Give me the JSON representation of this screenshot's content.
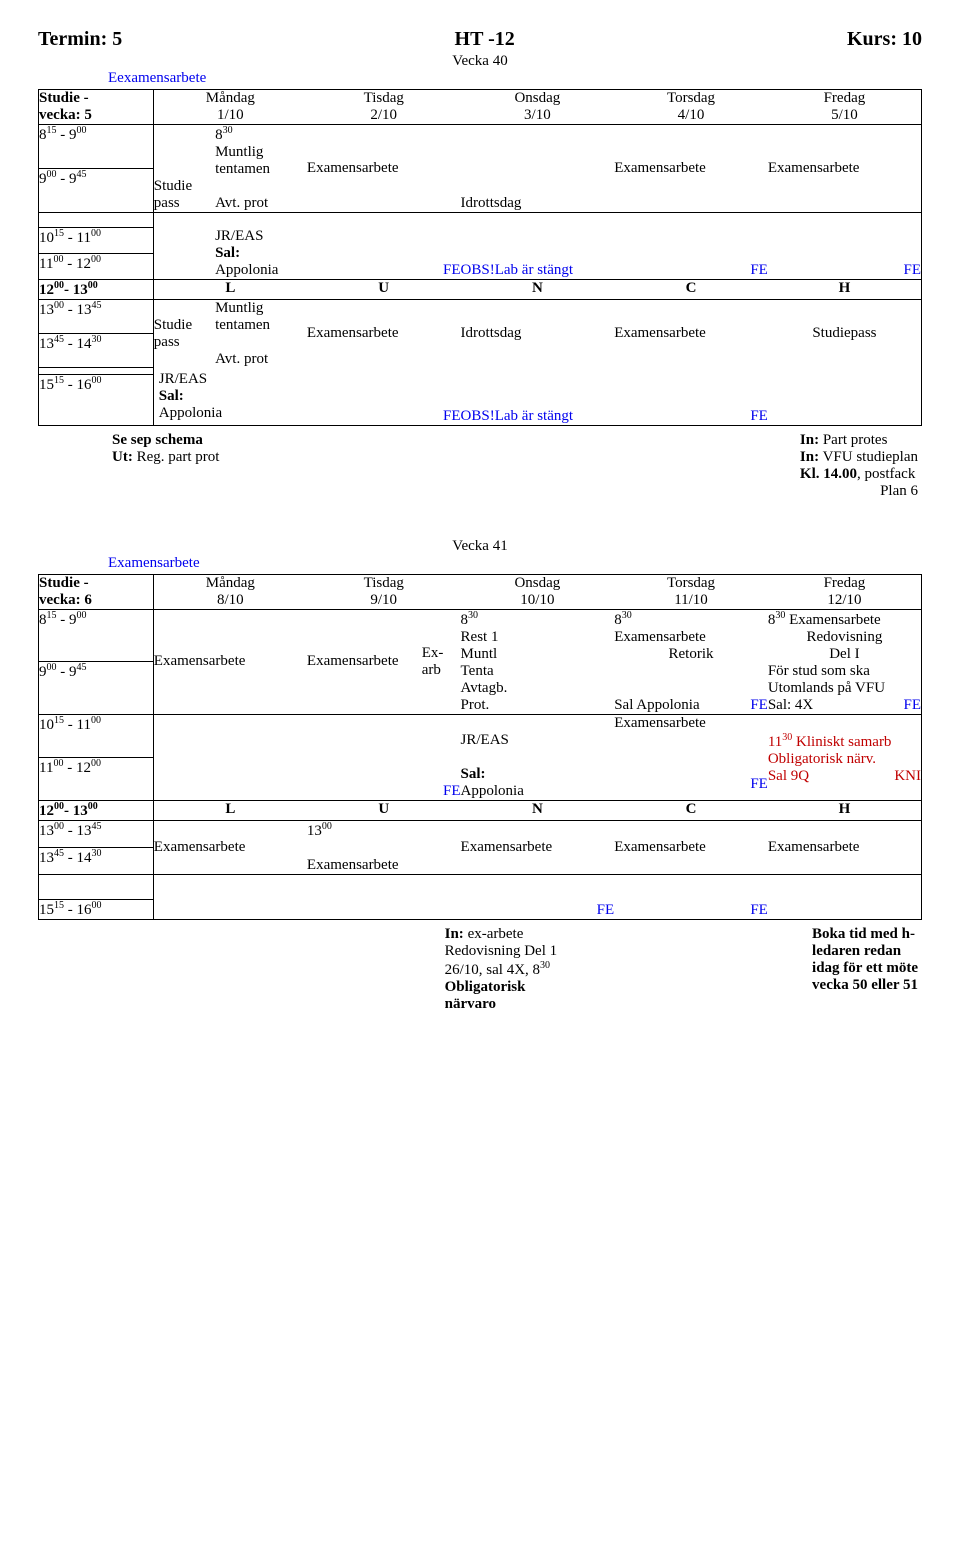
{
  "header": {
    "left": "Termin: 5",
    "center": "HT -12",
    "right": "Kurs: 10"
  },
  "w40": {
    "vecka": "Vecka 40",
    "link": "Eexamensarbete",
    "col0a": "Studie -",
    "col0b": "vecka: 5",
    "days": [
      "Måndag",
      "Tisdag",
      "Onsdag",
      "Torsdag",
      "Fredag"
    ],
    "dates": [
      "1/10",
      "2/10",
      "3/10",
      "4/10",
      "5/10"
    ],
    "t1a": "8",
    "t1as": "15",
    "t1b": " - 9",
    "t1bs": "00",
    "t2a": "9",
    "t2as": "00",
    "t2b": " - 9",
    "t2bs": "45",
    "t3a": "10",
    "t3as": "15",
    "t3b": " - 11",
    "t3bs": "00",
    "t4a": "11",
    "t4as": "00",
    "t4b": " - 12",
    "t4bs": "00",
    "tLa": "12",
    "tLas": "00",
    "tLb": "- 13",
    "tLbs": "00",
    "t5a": "13",
    "t5as": "00",
    "t5b": " - 13",
    "t5bs": "45",
    "t6a": "13",
    "t6as": "45",
    "t6b": " - 14",
    "t6bs": "30",
    "t7a": "15",
    "t7as": "15",
    "t7b": " - 16",
    "t7bs": "00",
    "r1_mon_studie": "Studie",
    "r1_mon_pass": "pass",
    "r1_mon_830": "8",
    "r1_mon_830s": "30",
    "r1_mon_muntlig": "Muntlig",
    "r1_mon_tent": "tentamen",
    "r1_mon_avt": "Avt. prot",
    "r1_tis": "Examensarbete",
    "r1_ons": "Idrottsdag",
    "r1_tor": "Examensarbete",
    "r1_fre": "Examensarbete",
    "r3_jreas": "JR/EAS",
    "r3_sal": "Sal:",
    "r3_app": "Appolonia",
    "r3_fe": "FE",
    "r3_obs": "OBS!Lab är stängt",
    "lunch": [
      "L",
      "U",
      "N",
      "C",
      "H"
    ],
    "aft_studie": "Studie",
    "aft_pass": "pass",
    "aft_muntlig": "Muntlig",
    "aft_tent": "tentamen",
    "aft_avt": "Avt. prot",
    "aft_tis": "Examensarbete",
    "aft_ons": "Idrottsdag",
    "aft_tor": "Examensarbete",
    "aft_fre": "Studiepass",
    "aft_obs": "OBS!Lab är stängt",
    "foot_l1a": "Se sep schema",
    "foot_l2a": "Ut:",
    "foot_l2b": " Reg. part prot",
    "foot_r1a": "In:",
    "foot_r1b": " Part protes",
    "foot_r2a": "In:",
    "foot_r2b": " VFU studieplan",
    "foot_r3": "Kl. 14.00",
    "foot_r3b": ", postfack",
    "foot_r4": "Plan 6"
  },
  "w41": {
    "vecka": "Vecka 41",
    "link": "Examensarbete",
    "col0a": "Studie -",
    "col0b": "vecka: 6",
    "days": [
      "Måndag",
      "Tisdag",
      "Onsdag",
      "Torsdag",
      "Fredag"
    ],
    "dates": [
      "8/10",
      "9/10",
      "10/10",
      "11/10",
      "12/10"
    ],
    "t1a": "8",
    "t1as": "15",
    "t1b": " - 9",
    "t1bs": "00",
    "t2a": "9",
    "t2as": "00",
    "t2b": " - 9",
    "t2bs": "45",
    "t3a": "10",
    "t3as": "15",
    "t3b": " - 11",
    "t3bs": "00",
    "t4a": "11",
    "t4as": "00",
    "t4b": " - 12",
    "t4bs": "00",
    "tLa": "12",
    "tLas": "00",
    "tLb": "- 13",
    "tLbs": "00",
    "t5a": "13",
    "t5as": "00",
    "t5b": " - 13",
    "t5bs": "45",
    "t6a": "13",
    "t6as": "45",
    "t6b": " - 14",
    "t6bs": "30",
    "t7a": "15",
    "t7as": "15",
    "t7b": " - 16",
    "t7bs": "00",
    "r1_mon": "Examensarbete",
    "r1_tis": "Examensarbete",
    "r1_exarb1": "Ex-",
    "r1_exarb2": "arb",
    "r1_ons_830": "8",
    "r1_ons_830s": "30",
    "r1_ons_rest": "Rest 1",
    "r1_ons_muntl": "Muntl",
    "r1_ons_tenta": "Tenta",
    "r1_ons_avt": "   Avtagb.",
    "r1_ons_prot": "Prot.",
    "r1_tor_830": "8",
    "r1_tor_830s": "30",
    "r1_tor_ex": "Examensarbete",
    "r1_tor_ret": "Retorik",
    "r1_tor_sal": "Sal Appolonia",
    "r1_fe": "FE",
    "r1_fre_830": "8",
    "r1_fre_830s": "30",
    "r1_fre_ex": " Examensarbete",
    "r1_fre_red": "Redovisning",
    "r1_fre_del": "Del I",
    "r1_fre_for": "För stud som ska",
    "r1_fre_ut": "Utomlands på VFU",
    "r1_fre_sal": "Sal: 4X",
    "r3_jreas": "JR/EAS",
    "r3_sal": "Sal:",
    "r3_app": "Appolonia",
    "r3_fe": "FE",
    "r3_tor": "Examensarbete",
    "r3_fre_11": "11",
    "r3_fre_11s": "30",
    "r3_fre_klin": " Kliniskt samarb",
    "r3_fre_obl": "Obligatorisk närv.",
    "r3_fre_sal": "Sal 9Q",
    "r3_fre_kni": "KNI",
    "lunch": [
      "L",
      "U",
      "N",
      "C",
      "H"
    ],
    "aft_13": "13",
    "aft_13s": "00",
    "aft_ex": "Examensarbete",
    "foot_c1a": "In:",
    "foot_c1b": " ex-arbete",
    "foot_c2": "Redovisning Del 1",
    "foot_c3": "26/10, sal 4X, 8",
    "foot_c3s": "30",
    "foot_c4": "Obligatorisk",
    "foot_c5": "närvaro",
    "foot_r1": "Boka tid med h-",
    "foot_r2": "ledaren redan",
    "foot_r3": "idag för ett möte",
    "foot_r4": "vecka 50 eller 51"
  }
}
